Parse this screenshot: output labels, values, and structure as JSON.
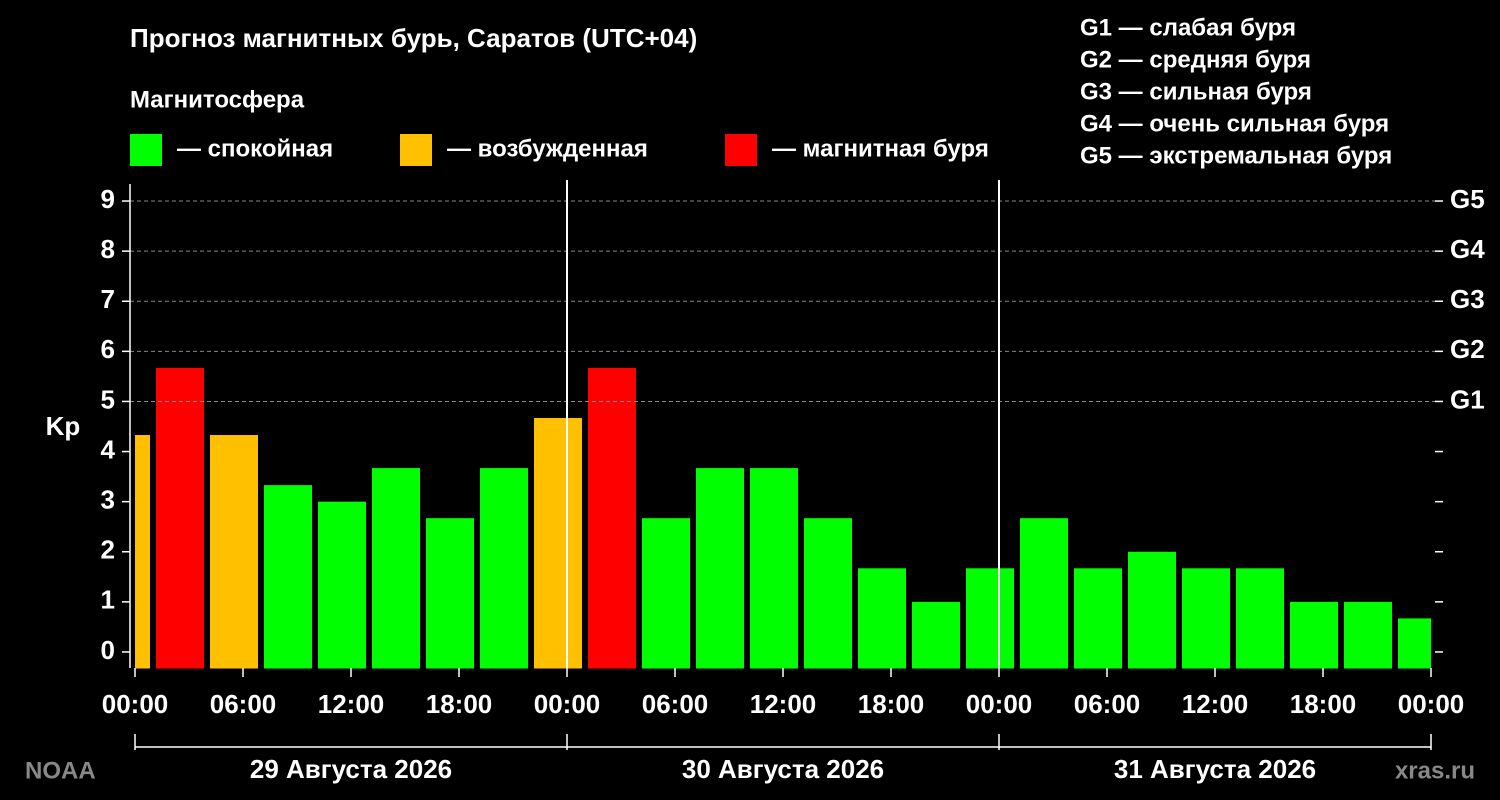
{
  "chart_data": {
    "type": "bar",
    "title": "Прогноз магнитных бурь, Саратов (UTC+04)",
    "subtitle": "Магнитосфера",
    "ylabel": "Kp",
    "legend": [
      {
        "name": "— спокойная",
        "color": "#00ff00"
      },
      {
        "name": "— возбужденная",
        "color": "#ffc000"
      },
      {
        "name": "— магнитная буря",
        "color": "#ff0000"
      }
    ],
    "scale_legend": [
      "G1 — слабая буря",
      "G2 — средняя буря",
      "G3 — сильная буря",
      "G4 — очень сильная буря",
      "G5 — экстремальная буря"
    ],
    "x": [
      -0.5,
      2.5,
      5.5,
      8.5,
      11.5,
      14.5,
      17.5,
      20.5,
      23.5,
      26.5,
      29.5,
      32.5,
      35.5,
      38.5,
      41.5,
      44.5,
      47.5,
      50.5,
      53.5,
      56.5,
      59.5,
      62.5,
      65.5,
      68.5,
      71.5
    ],
    "values": [
      4.33,
      5.67,
      4.33,
      3.33,
      3,
      3.67,
      2.67,
      3.67,
      4.67,
      5.67,
      2.67,
      3.67,
      3.67,
      2.67,
      1.67,
      1,
      1.67,
      2.67,
      1.67,
      2,
      1.67,
      1.67,
      1,
      1,
      0.67
    ],
    "colors": [
      "#ffc000",
      "#ff0000",
      "#ffc000",
      "#00ff00",
      "#00ff00",
      "#00ff00",
      "#00ff00",
      "#00ff00",
      "#ffc000",
      "#ff0000",
      "#00ff00",
      "#00ff00",
      "#00ff00",
      "#00ff00",
      "#00ff00",
      "#00ff00",
      "#00ff00",
      "#00ff00",
      "#00ff00",
      "#00ff00",
      "#00ff00",
      "#00ff00",
      "#00ff00",
      "#00ff00",
      "#00ff00"
    ],
    "xlim": [
      0,
      72
    ],
    "xticks": [
      {
        "value": 0,
        "label": "00:00"
      },
      {
        "value": 6,
        "label": "06:00"
      },
      {
        "value": 12,
        "label": "12:00"
      },
      {
        "value": 18,
        "label": "18:00"
      },
      {
        "value": 24,
        "label": "00:00"
      },
      {
        "value": 30,
        "label": "06:00"
      },
      {
        "value": 36,
        "label": "12:00"
      },
      {
        "value": 42,
        "label": "18:00"
      },
      {
        "value": 48,
        "label": "00:00"
      },
      {
        "value": 54,
        "label": "06:00"
      },
      {
        "value": 60,
        "label": "12:00"
      },
      {
        "value": 66,
        "label": "18:00"
      },
      {
        "value": 72,
        "label": "00:00"
      }
    ],
    "days": [
      "29 Августа 2026",
      "30 Августа 2026",
      "31 Августа 2026"
    ],
    "ylim": [
      -0.33,
      9.33
    ],
    "yticks": [
      0,
      1,
      2,
      3,
      4,
      5,
      6,
      7,
      8,
      9
    ],
    "y2lim": [
      -0.33,
      9.33
    ],
    "y2ticks": [
      {
        "value": 5,
        "label": "G1"
      },
      {
        "value": 6,
        "label": "G2"
      },
      {
        "value": 7,
        "label": "G3"
      },
      {
        "value": 8,
        "label": "G4"
      },
      {
        "value": 9,
        "label": "G5"
      }
    ],
    "grid": true,
    "source": "NOAA",
    "watermark": "xras.ru"
  }
}
